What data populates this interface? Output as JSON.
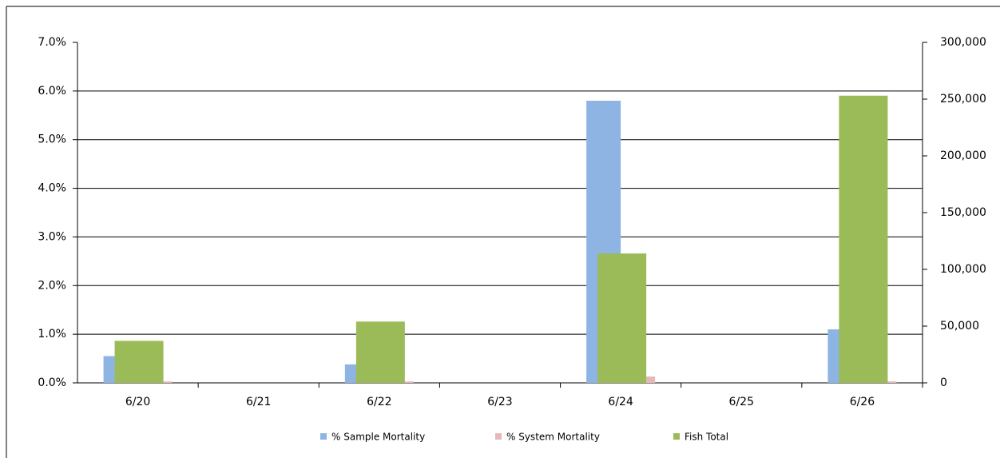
{
  "chart_data": {
    "type": "bar",
    "categories": [
      "6/20",
      "6/21",
      "6/22",
      "6/23",
      "6/24",
      "6/25",
      "6/26"
    ],
    "series": [
      {
        "name": "% Sample Mortality",
        "color": "#8eb4e3",
        "values": [
          0.55,
          null,
          0.38,
          null,
          5.8,
          null,
          1.1
        ]
      },
      {
        "name": "% System Mortality",
        "color": "#e6b9b8",
        "values": [
          0.03,
          null,
          0.03,
          null,
          0.13,
          null,
          0.03
        ]
      },
      {
        "name": "Fish Total",
        "color": "#9bbb59",
        "axis": "y2",
        "values": [
          37000,
          null,
          54000,
          null,
          114000,
          null,
          253000
        ]
      }
    ],
    "ylim": [
      0,
      7
    ],
    "yticks": [
      {
        "value": 0,
        "label": "0.0%"
      },
      {
        "value": 1,
        "label": "1.0%"
      },
      {
        "value": 2,
        "label": "2.0%"
      },
      {
        "value": 3,
        "label": "3.0%"
      },
      {
        "value": 4,
        "label": "4.0%"
      },
      {
        "value": 5,
        "label": "5.0%"
      },
      {
        "value": 6,
        "label": "6.0%"
      },
      {
        "value": 7,
        "label": "7.0%"
      }
    ],
    "y2lim": [
      0,
      300000
    ],
    "y2ticks": [
      0,
      {
        "value": 50000,
        "label": "50,000"
      },
      {
        "value": 100000,
        "label": "100,000"
      },
      {
        "value": 150000,
        "label": "150,000"
      },
      {
        "value": 200000,
        "label": "200,000"
      },
      {
        "value": 250000,
        "label": "250,000"
      },
      {
        "value": 300000,
        "label": "300,000"
      }
    ],
    "grid": true,
    "legend": "bottom"
  }
}
